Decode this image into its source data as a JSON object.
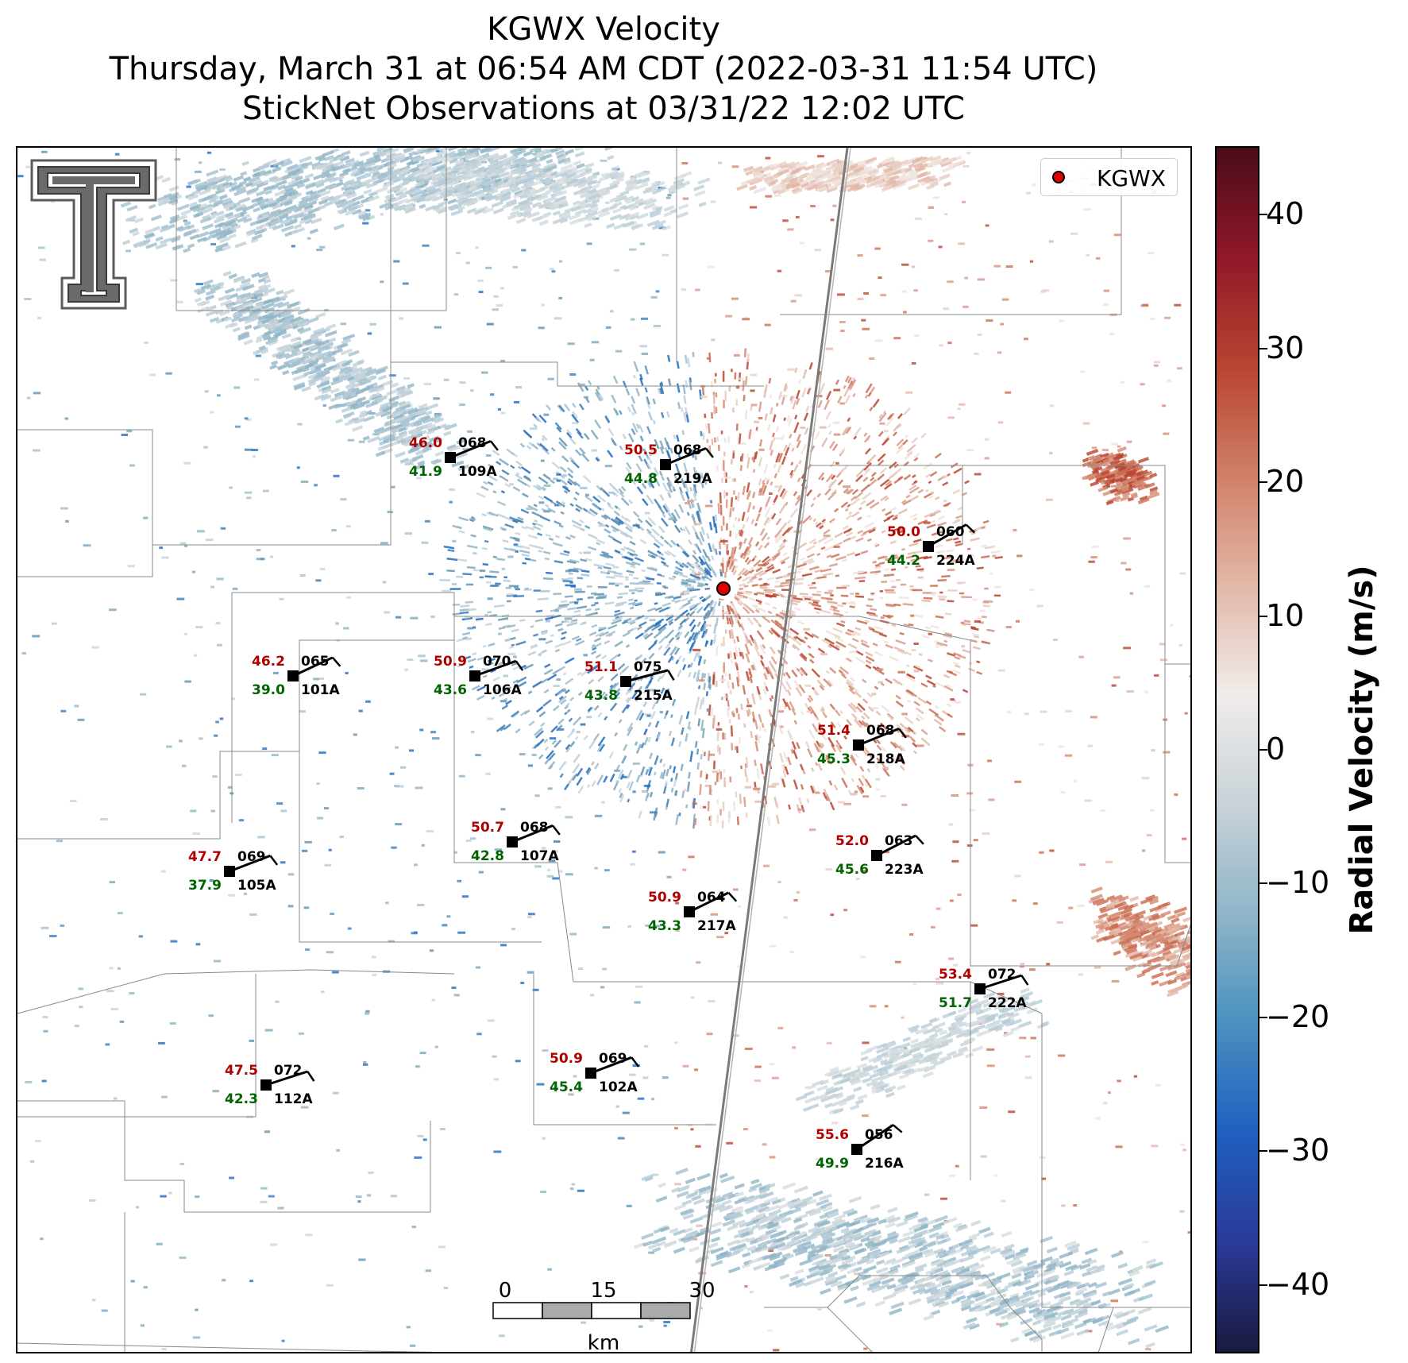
{
  "title": {
    "line1": "KGWX Velocity",
    "line2": "Thursday, March 31 at 06:54 AM CDT (2022-03-31 11:54 UTC)",
    "line3": "StickNet Observations at 03/31/22 12:02 UTC"
  },
  "legend": {
    "label": "KGWX",
    "marker_color": "#e00000"
  },
  "logo": {
    "name": "texas-tech-double-t-logo",
    "color": "#6a6a6a"
  },
  "colorbar": {
    "label": "Radial Velocity (m/s)",
    "ticks": [
      "40",
      "30",
      "20",
      "10",
      "0",
      "−10",
      "−20",
      "−30",
      "−40"
    ],
    "tick_values": [
      40,
      30,
      20,
      10,
      0,
      -10,
      -20,
      -30,
      -40
    ],
    "range": [
      -45,
      45
    ],
    "colors": [
      "#1a1a40",
      "#2a3a98",
      "#1f5fbf",
      "#4a90c0",
      "#8fb5c8",
      "#c8d2d8",
      "#f0ecea",
      "#e2b8a8",
      "#d08068",
      "#b84430",
      "#901828",
      "#4a0c1a"
    ]
  },
  "scalebar": {
    "ticks": [
      "0",
      "15",
      "30"
    ],
    "unit": "km"
  },
  "stations": [
    {
      "id": "109A",
      "temp": "46.0",
      "dew": "41.9",
      "dir": "068"
    },
    {
      "id": "219A",
      "temp": "50.5",
      "dew": "44.8",
      "dir": "068"
    },
    {
      "id": "224A",
      "temp": "50.0",
      "dew": "44.2",
      "dir": "060"
    },
    {
      "id": "101A",
      "temp": "46.2",
      "dew": "39.0",
      "dir": "065"
    },
    {
      "id": "106A",
      "temp": "50.9",
      "dew": "43.6",
      "dir": "070"
    },
    {
      "id": "215A",
      "temp": "51.1",
      "dew": "43.8",
      "dir": "075"
    },
    {
      "id": "218A",
      "temp": "51.4",
      "dew": "45.3",
      "dir": "068"
    },
    {
      "id": "107A",
      "temp": "50.7",
      "dew": "42.8",
      "dir": "068"
    },
    {
      "id": "105A",
      "temp": "47.7",
      "dew": "37.9",
      "dir": "069"
    },
    {
      "id": "223A",
      "temp": "52.0",
      "dew": "45.6",
      "dir": "063"
    },
    {
      "id": "217A",
      "temp": "50.9",
      "dew": "43.3",
      "dir": "064"
    },
    {
      "id": "222A",
      "temp": "53.4",
      "dew": "51.7",
      "dir": "072"
    },
    {
      "id": "112A",
      "temp": "47.5",
      "dew": "42.3",
      "dir": "072"
    },
    {
      "id": "102A",
      "temp": "50.9",
      "dew": "45.4",
      "dir": "069"
    },
    {
      "id": "216A",
      "temp": "55.6",
      "dew": "49.9",
      "dir": "056"
    }
  ],
  "colors": {
    "temp": "#b00000",
    "dew": "#006400",
    "station_id": "#000000"
  }
}
